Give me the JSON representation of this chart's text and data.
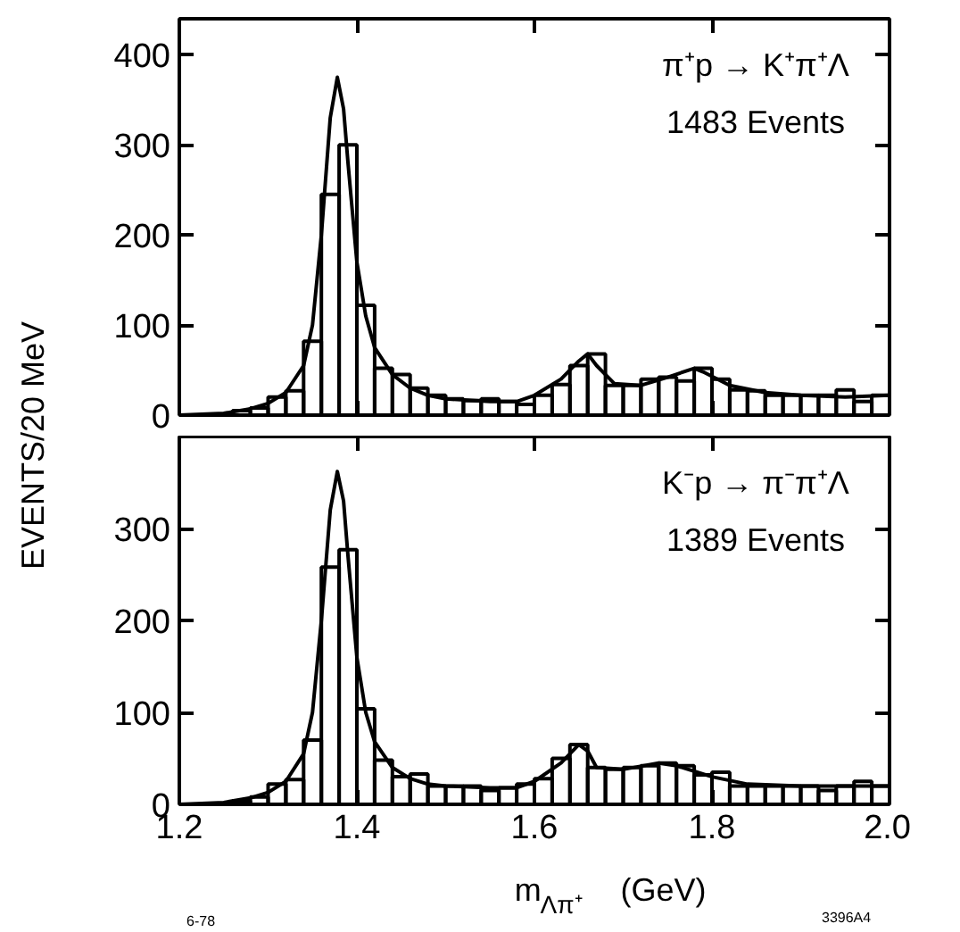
{
  "chart_data": [
    {
      "type": "histogram",
      "ylabel": "EVENTS/20 MeV",
      "annotations": [
        "π⁺p → K⁺π⁺Λ",
        "1483 Events"
      ],
      "bins": [
        1.2,
        1.22,
        1.24,
        1.26,
        1.28,
        1.3,
        1.32,
        1.34,
        1.36,
        1.38,
        1.4,
        1.42,
        1.44,
        1.46,
        1.48,
        1.5,
        1.52,
        1.54,
        1.56,
        1.58,
        1.6,
        1.62,
        1.64,
        1.66,
        1.68,
        1.7,
        1.72,
        1.74,
        1.76,
        1.78,
        1.8,
        1.82,
        1.84,
        1.86,
        1.88,
        1.9,
        1.92,
        1.94,
        1.96,
        1.98,
        2.0
      ],
      "series": [
        {
          "color": "#000000",
          "values": [
            0,
            0,
            0,
            5,
            8,
            20,
            27,
            82,
            245,
            300,
            122,
            52,
            45,
            30,
            22,
            18,
            16,
            18,
            15,
            12,
            22,
            34,
            55,
            68,
            33,
            33,
            40,
            42,
            38,
            52,
            40,
            28,
            27,
            22,
            22,
            22,
            22,
            28,
            15,
            22
          ]
        },
        {
          "type": "line",
          "color": "#000000",
          "x": [
            1.2,
            1.25,
            1.28,
            1.3,
            1.32,
            1.34,
            1.35,
            1.36,
            1.37,
            1.378,
            1.385,
            1.39,
            1.4,
            1.41,
            1.42,
            1.44,
            1.46,
            1.48,
            1.5,
            1.55,
            1.58,
            1.6,
            1.63,
            1.65,
            1.66,
            1.67,
            1.69,
            1.72,
            1.75,
            1.78,
            1.79,
            1.82,
            1.86,
            1.9,
            1.95,
            2.0
          ],
          "values": [
            0,
            2,
            7,
            13,
            25,
            55,
            100,
            200,
            330,
            375,
            340,
            280,
            170,
            110,
            75,
            45,
            30,
            22,
            18,
            15,
            15,
            22,
            40,
            60,
            68,
            55,
            35,
            33,
            42,
            52,
            48,
            33,
            25,
            22,
            20,
            22
          ]
        }
      ],
      "xlim": [
        1.2,
        2.0
      ],
      "xticks": [
        1.2,
        1.4,
        1.6,
        1.8,
        2.0
      ],
      "ylim": [
        0,
        440
      ],
      "yticks": [
        0,
        100,
        200,
        300,
        400
      ],
      "tick_labels": "y"
    },
    {
      "type": "histogram",
      "xlabel": "m$_{Λπ⁺}$  (GeV)",
      "annotations": [
        "K⁻p → π⁻π⁺Λ",
        "1389 Events",
        "6-78",
        "3396A4"
      ],
      "bins": [
        1.2,
        1.22,
        1.24,
        1.26,
        1.28,
        1.3,
        1.32,
        1.34,
        1.36,
        1.38,
        1.4,
        1.42,
        1.44,
        1.46,
        1.48,
        1.5,
        1.52,
        1.54,
        1.56,
        1.58,
        1.6,
        1.62,
        1.64,
        1.66,
        1.68,
        1.7,
        1.72,
        1.74,
        1.76,
        1.78,
        1.8,
        1.82,
        1.84,
        1.86,
        1.88,
        1.9,
        1.92,
        1.94,
        1.96,
        1.98,
        2.0
      ],
      "series": [
        {
          "color": "#000000",
          "values": [
            0,
            0,
            0,
            4,
            8,
            22,
            27,
            70,
            258,
            277,
            104,
            48,
            30,
            33,
            20,
            20,
            20,
            15,
            18,
            22,
            28,
            50,
            65,
            40,
            38,
            40,
            42,
            45,
            42,
            32,
            35,
            20,
            20,
            20,
            20,
            20,
            15,
            20,
            25,
            20
          ]
        },
        {
          "type": "line",
          "color": "#000000",
          "x": [
            1.2,
            1.25,
            1.28,
            1.3,
            1.32,
            1.34,
            1.35,
            1.36,
            1.37,
            1.378,
            1.385,
            1.39,
            1.4,
            1.41,
            1.42,
            1.44,
            1.46,
            1.48,
            1.5,
            1.55,
            1.58,
            1.6,
            1.63,
            1.65,
            1.66,
            1.67,
            1.7,
            1.74,
            1.76,
            1.8,
            1.84,
            1.9,
            1.95,
            2.0
          ],
          "values": [
            0,
            2,
            7,
            13,
            25,
            55,
            100,
            200,
            320,
            362,
            330,
            270,
            160,
            100,
            68,
            40,
            28,
            22,
            20,
            18,
            18,
            25,
            45,
            65,
            58,
            40,
            38,
            45,
            42,
            30,
            22,
            20,
            20,
            20
          ]
        }
      ],
      "xlim": [
        1.2,
        2.0
      ],
      "xticks": [
        1.2,
        1.4,
        1.6,
        1.8,
        {
          "value": 2.0,
          "label": "2.0"
        }
      ],
      "ylim": [
        0,
        400
      ],
      "yticks": [
        0,
        100,
        200,
        300
      ]
    }
  ]
}
